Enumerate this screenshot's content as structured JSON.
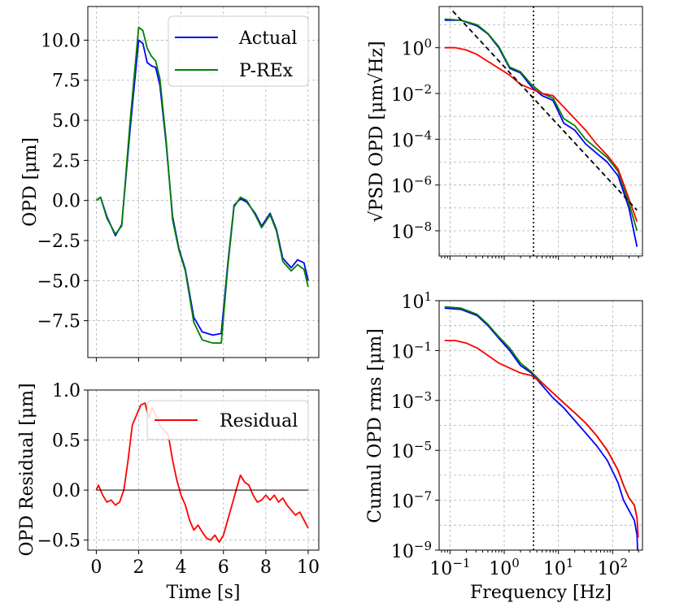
{
  "colors": {
    "actual": "#0000ff",
    "prex": "#008000",
    "residual": "#ff0000",
    "fit": "#000000",
    "vline": "#000000"
  },
  "chart_data": [
    {
      "id": "opd",
      "type": "line",
      "xlabel": "",
      "ylabel": "OPD [μm]",
      "xlim": [
        -0.4,
        10.5
      ],
      "ylim": [
        -9.8,
        12.1
      ],
      "xticks": [
        0,
        2,
        4,
        6,
        8,
        10
      ],
      "yticks": [
        "10.0",
        "7.5",
        "5.0",
        "2.5",
        "0.0",
        "−2.5",
        "−5.0",
        "−7.5"
      ],
      "ytick_values": [
        10,
        7.5,
        5,
        2.5,
        0,
        -2.5,
        -5,
        -7.5
      ],
      "legend": {
        "position": "top-right",
        "entries": [
          "Actual",
          "P-REx"
        ]
      },
      "series": [
        {
          "name": "Actual",
          "color": "#0000ff",
          "x": [
            0,
            0.2,
            0.5,
            0.9,
            1.2,
            1.6,
            2.0,
            2.2,
            2.4,
            2.6,
            2.8,
            3.0,
            3.3,
            3.6,
            3.9,
            4.2,
            4.6,
            5.0,
            5.5,
            5.9,
            6.2,
            6.5,
            6.8,
            7.1,
            7.5,
            7.8,
            8.2,
            8.5,
            8.8,
            9.2,
            9.5,
            9.8,
            10.0
          ],
          "y": [
            0.0,
            0.2,
            -1.0,
            -2.2,
            -1.5,
            4.5,
            10.0,
            9.8,
            8.6,
            8.4,
            8.3,
            7.2,
            3.5,
            -1.0,
            -3.0,
            -4.3,
            -7.3,
            -8.2,
            -8.4,
            -8.3,
            -4.0,
            -0.3,
            0.1,
            -0.1,
            -0.8,
            -1.6,
            -0.8,
            -1.8,
            -3.6,
            -4.2,
            -3.7,
            -3.9,
            -5.0
          ]
        },
        {
          "name": "P-REx",
          "color": "#008000",
          "x": [
            0,
            0.2,
            0.5,
            0.9,
            1.2,
            1.6,
            2.0,
            2.2,
            2.4,
            2.6,
            2.8,
            3.0,
            3.3,
            3.6,
            3.9,
            4.2,
            4.6,
            5.0,
            5.5,
            5.9,
            6.2,
            6.5,
            6.8,
            7.1,
            7.5,
            7.8,
            8.2,
            8.5,
            8.8,
            9.2,
            9.5,
            9.8,
            10.0
          ],
          "y": [
            0.0,
            0.2,
            -1.1,
            -2.1,
            -1.6,
            5.0,
            10.8,
            10.6,
            9.5,
            9.0,
            8.7,
            7.6,
            3.7,
            -1.2,
            -3.1,
            -4.4,
            -7.6,
            -8.7,
            -8.9,
            -8.9,
            -4.2,
            -0.4,
            0.2,
            0.0,
            -0.9,
            -1.7,
            -0.9,
            -1.9,
            -3.8,
            -4.4,
            -4.0,
            -4.3,
            -5.4
          ]
        }
      ]
    },
    {
      "id": "residual",
      "type": "line",
      "xlabel": "Time [s]",
      "ylabel": "OPD Residual [μm]",
      "xlim": [
        -0.4,
        10.5
      ],
      "ylim": [
        -0.6,
        1.0
      ],
      "xticks": [
        0,
        2,
        4,
        6,
        8,
        10
      ],
      "yticks": [
        "1.0",
        "0.5",
        "0.0",
        "−0.5"
      ],
      "ytick_values": [
        1.0,
        0.5,
        0.0,
        -0.5
      ],
      "legend": {
        "position": "top-right",
        "entries": [
          "Residual"
        ]
      },
      "series": [
        {
          "name": "Residual",
          "color": "#ff0000",
          "x": [
            0,
            0.1,
            0.2,
            0.3,
            0.5,
            0.7,
            0.9,
            1.1,
            1.3,
            1.5,
            1.7,
            1.9,
            2.1,
            2.3,
            2.4,
            2.5,
            2.6,
            2.7,
            2.8,
            3.0,
            3.2,
            3.4,
            3.6,
            3.8,
            4.0,
            4.2,
            4.4,
            4.6,
            4.8,
            5.0,
            5.2,
            5.4,
            5.6,
            5.8,
            6.0,
            6.2,
            6.4,
            6.6,
            6.8,
            7.0,
            7.2,
            7.4,
            7.6,
            7.8,
            8.0,
            8.2,
            8.4,
            8.6,
            8.8,
            9.0,
            9.2,
            9.4,
            9.6,
            9.8,
            10.0
          ],
          "y": [
            0.0,
            0.05,
            0.0,
            -0.05,
            -0.12,
            -0.1,
            -0.15,
            -0.12,
            0.0,
            0.3,
            0.65,
            0.75,
            0.85,
            0.87,
            0.78,
            0.72,
            0.82,
            0.8,
            0.75,
            0.65,
            0.6,
            0.55,
            0.3,
            0.1,
            -0.05,
            -0.15,
            -0.3,
            -0.4,
            -0.35,
            -0.42,
            -0.48,
            -0.5,
            -0.45,
            -0.52,
            -0.45,
            -0.3,
            -0.15,
            0.0,
            0.15,
            0.08,
            0.05,
            -0.05,
            -0.12,
            -0.1,
            -0.05,
            -0.1,
            -0.05,
            -0.12,
            -0.08,
            -0.15,
            -0.2,
            -0.25,
            -0.22,
            -0.3,
            -0.38
          ]
        },
        {
          "name": "zero",
          "color": "#000000",
          "x": [
            0,
            10
          ],
          "y": [
            0,
            0
          ]
        }
      ]
    },
    {
      "id": "psd",
      "type": "line",
      "xscale": "log",
      "yscale": "log",
      "xlabel": "",
      "ylabel": "√PSD OPD [μm√Hz]",
      "xlim_log10": [
        -1.2,
        2.55
      ],
      "ylim_log10": [
        -9.1,
        1.8
      ],
      "yticks": [
        "10^0",
        "10^−2",
        "10^−4",
        "10^−6",
        "10^−8"
      ],
      "ytick_exp": [
        0,
        -2,
        -4,
        -6,
        -8
      ],
      "vline_log10": 0.54,
      "series": [
        {
          "name": "Actual",
          "color": "#0000ff",
          "logx": [
            -1.1,
            -0.8,
            -0.5,
            -0.3,
            -0.1,
            0.1,
            0.3,
            0.5,
            0.7,
            0.9,
            1.1,
            1.3,
            1.5,
            1.7,
            1.9,
            2.1,
            2.3,
            2.45
          ],
          "logy": [
            1.2,
            1.2,
            0.95,
            0.6,
            0.0,
            -0.9,
            -1.1,
            -1.7,
            -2.1,
            -2.3,
            -3.3,
            -3.6,
            -4.2,
            -4.6,
            -5.0,
            -5.6,
            -7.0,
            -8.7
          ]
        },
        {
          "name": "P-REx",
          "color": "#008000",
          "logx": [
            -1.1,
            -0.8,
            -0.5,
            -0.3,
            -0.1,
            0.1,
            0.3,
            0.5,
            0.7,
            0.9,
            1.1,
            1.3,
            1.5,
            1.7,
            1.9,
            2.1,
            2.3,
            2.45
          ],
          "logy": [
            1.25,
            1.2,
            1.0,
            0.62,
            0.05,
            -0.85,
            -1.05,
            -1.6,
            -2.0,
            -2.2,
            -3.1,
            -3.4,
            -4.0,
            -4.4,
            -4.8,
            -5.4,
            -6.8,
            -8.0
          ]
        },
        {
          "name": "Residual",
          "color": "#ff0000",
          "logx": [
            -1.1,
            -0.9,
            -0.7,
            -0.5,
            -0.3,
            -0.1,
            0.1,
            0.3,
            0.5,
            0.7,
            0.9,
            1.1,
            1.3,
            1.5,
            1.7,
            1.9,
            2.1,
            2.3,
            2.45
          ],
          "logy": [
            0.0,
            0.0,
            -0.1,
            -0.3,
            -0.6,
            -0.9,
            -1.2,
            -1.6,
            -1.8,
            -2.0,
            -2.1,
            -2.6,
            -3.1,
            -3.6,
            -4.2,
            -4.7,
            -5.3,
            -6.6,
            -7.6
          ]
        },
        {
          "name": "Fit",
          "color": "#000000",
          "dashed": true,
          "logx": [
            -0.95,
            2.45
          ],
          "logy": [
            1.6,
            -7.1
          ]
        }
      ]
    },
    {
      "id": "cumul",
      "type": "line",
      "xscale": "log",
      "yscale": "log",
      "xlabel": "Frequency [Hz]",
      "ylabel": "Cumul OPD rms [μm]",
      "xlim_log10": [
        -1.2,
        2.55
      ],
      "ylim_log10": [
        -9,
        1
      ],
      "xticks": [
        "10^−1",
        "10^0",
        "10^1",
        "10^2"
      ],
      "xtick_exp": [
        -1,
        0,
        1,
        2
      ],
      "yticks": [
        "10^1",
        "10^−1",
        "10^−3",
        "10^−5",
        "10^−7",
        "10^−9"
      ],
      "ytick_exp": [
        1,
        -1,
        -3,
        -5,
        -7,
        -9
      ],
      "vline_log10": 0.54,
      "series": [
        {
          "name": "Actual",
          "color": "#0000ff",
          "logx": [
            -1.1,
            -0.8,
            -0.5,
            -0.3,
            -0.1,
            0.1,
            0.3,
            0.5,
            0.7,
            0.9,
            1.1,
            1.3,
            1.5,
            1.7,
            1.9,
            2.1,
            2.2,
            2.3,
            2.4,
            2.45,
            2.46
          ],
          "logy": [
            0.7,
            0.65,
            0.4,
            0.0,
            -0.5,
            -1.0,
            -1.6,
            -1.9,
            -2.4,
            -2.9,
            -3.3,
            -3.8,
            -4.3,
            -4.8,
            -5.4,
            -6.3,
            -7.0,
            -7.4,
            -7.8,
            -8.4,
            -9.0
          ]
        },
        {
          "name": "P-REx",
          "color": "#008000",
          "logx": [
            -1.1,
            -0.8,
            -0.5,
            -0.3,
            -0.1,
            0.1,
            0.3,
            0.5,
            0.7,
            0.9,
            1.1,
            1.3,
            1.5,
            1.7,
            1.9,
            2.1,
            2.2,
            2.3,
            2.4,
            2.45
          ],
          "logy": [
            0.75,
            0.7,
            0.45,
            0.05,
            -0.45,
            -0.9,
            -1.5,
            -1.85,
            -2.3,
            -2.7,
            -3.1,
            -3.5,
            -3.9,
            -4.4,
            -5.0,
            -5.8,
            -6.4,
            -6.9,
            -7.2,
            -7.7
          ]
        },
        {
          "name": "Residual",
          "color": "#ff0000",
          "logx": [
            -1.1,
            -0.9,
            -0.7,
            -0.5,
            -0.3,
            -0.1,
            0.1,
            0.3,
            0.5,
            0.7,
            0.9,
            1.1,
            1.3,
            1.5,
            1.7,
            1.9,
            2.1,
            2.2,
            2.3,
            2.4,
            2.45,
            2.47
          ],
          "logy": [
            -0.6,
            -0.6,
            -0.7,
            -0.9,
            -1.2,
            -1.5,
            -1.7,
            -1.9,
            -2.0,
            -2.3,
            -2.7,
            -3.1,
            -3.5,
            -3.9,
            -4.4,
            -5.0,
            -5.8,
            -6.4,
            -6.9,
            -7.2,
            -7.7,
            -8.5
          ]
        }
      ]
    }
  ]
}
